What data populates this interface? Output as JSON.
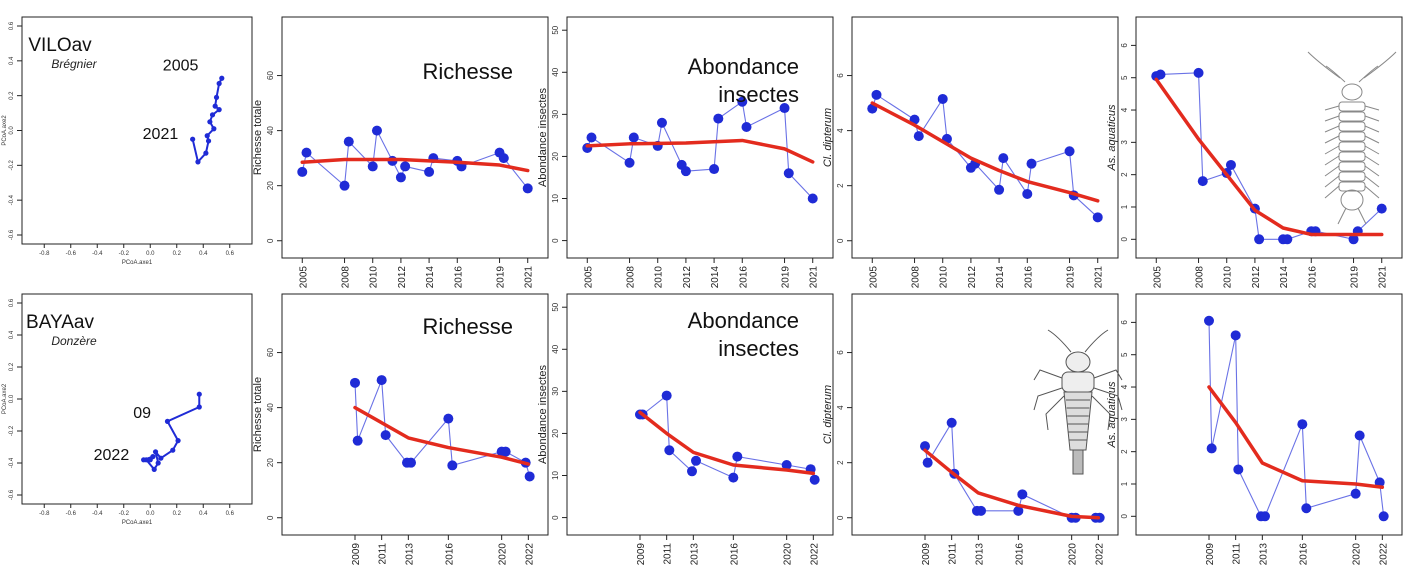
{
  "chart_data": [
    {
      "type": "scatter",
      "subtype": "ordination-trajectory",
      "site": "VILOav",
      "river": "Brégnier",
      "xlabel": "PCoA.axe1",
      "ylabel": "PCoA.axe2",
      "xlim": [
        -0.9,
        0.7
      ],
      "ylim": [
        -0.6,
        0.6
      ],
      "xticks": [
        "-0.8",
        "-0.6",
        "-0.4",
        "-0.2",
        "0.0",
        "0.2",
        "0.4",
        "0.6"
      ],
      "yticks": [
        "-0.6",
        "-0.4",
        "-0.2",
        "0.0",
        "0.2",
        "0.4",
        "0.6"
      ],
      "year_labels": [
        {
          "text": "2005",
          "x": 0.54,
          "y": 0.3
        },
        {
          "text": "2021",
          "x": 0.32,
          "y": -0.05
        }
      ],
      "points": [
        {
          "x": 0.54,
          "y": 0.3
        },
        {
          "x": 0.52,
          "y": 0.27
        },
        {
          "x": 0.5,
          "y": 0.19
        },
        {
          "x": 0.49,
          "y": 0.14
        },
        {
          "x": 0.52,
          "y": 0.12
        },
        {
          "x": 0.47,
          "y": 0.09
        },
        {
          "x": 0.45,
          "y": 0.05
        },
        {
          "x": 0.48,
          "y": 0.01
        },
        {
          "x": 0.43,
          "y": -0.03
        },
        {
          "x": 0.44,
          "y": -0.06
        },
        {
          "x": 0.42,
          "y": -0.13
        },
        {
          "x": 0.36,
          "y": -0.18
        },
        {
          "x": 0.32,
          "y": -0.05
        }
      ],
      "color": "#1f2bd6"
    },
    {
      "type": "line",
      "title": "Richesse",
      "ylabel": "Richesse totale",
      "ylim": [
        -3,
        78
      ],
      "yticks": [
        0,
        20,
        40,
        60
      ],
      "xlim": [
        2004.2,
        2021.8
      ],
      "xticks": [
        2005,
        2008,
        2010,
        2012,
        2014,
        2016,
        2019,
        2021
      ],
      "x": [
        2005,
        2005.3,
        2008,
        2008.3,
        2010,
        2010.3,
        2011.4,
        2012,
        2012.3,
        2014,
        2014.3,
        2016,
        2016.3,
        2019,
        2019.3,
        2021
      ],
      "values": [
        25,
        32,
        20,
        36,
        27,
        40,
        29,
        23,
        27,
        25,
        30,
        29,
        27,
        32,
        30,
        19
      ],
      "trend": {
        "x": [
          2005,
          2008,
          2012,
          2016,
          2019,
          2021
        ],
        "values": [
          28.5,
          29.5,
          29.5,
          28.5,
          27.5,
          25.5
        ]
      },
      "point_color": "#1f2bd6",
      "trend_color": "#e32b1e"
    },
    {
      "type": "line",
      "title": "Abondance insectes",
      "title_lines": [
        "Abondance",
        "insectes"
      ],
      "ylabel": "Abondance insectes",
      "ylim": [
        -2,
        51
      ],
      "yticks": [
        0,
        10,
        20,
        30,
        40,
        50
      ],
      "xlim": [
        2004.2,
        2021.8
      ],
      "xticks": [
        2005,
        2008,
        2010,
        2012,
        2014,
        2016,
        2019,
        2021
      ],
      "x": [
        2005,
        2005.3,
        2008,
        2008.3,
        2010,
        2010.3,
        2011.7,
        2012,
        2014,
        2014.3,
        2016,
        2016.3,
        2019,
        2019.3,
        2021
      ],
      "values": [
        22,
        24.5,
        18.5,
        24.5,
        22.5,
        28,
        18,
        16.5,
        17,
        29,
        33,
        27,
        31.5,
        16,
        10
      ],
      "trend": {
        "x": [
          2005,
          2008,
          2012,
          2016,
          2019,
          2021
        ],
        "values": [
          22.5,
          23,
          23.2,
          23.8,
          21.8,
          18.7
        ]
      },
      "point_color": "#1f2bd6",
      "trend_color": "#e32b1e"
    },
    {
      "type": "line",
      "ylabel": "Cl. dipterum",
      "ylim": [
        -0.3,
        7.8
      ],
      "yticks": [
        0,
        2,
        4,
        6
      ],
      "xlim": [
        2004.2,
        2021.8
      ],
      "xticks": [
        2005,
        2008,
        2010,
        2012,
        2014,
        2016,
        2019,
        2021
      ],
      "x": [
        2005,
        2005.3,
        2008,
        2008.3,
        2010,
        2010.3,
        2012,
        2012.3,
        2014,
        2014.3,
        2016,
        2016.3,
        2019,
        2019.3,
        2021
      ],
      "values": [
        4.8,
        5.3,
        4.4,
        3.8,
        5.15,
        3.7,
        2.65,
        2.8,
        1.85,
        3.0,
        1.7,
        2.8,
        3.25,
        1.65,
        0.85
      ],
      "trend": {
        "x": [
          2005,
          2008,
          2010,
          2012,
          2014,
          2016,
          2019,
          2021
        ],
        "values": [
          5.0,
          4.2,
          3.6,
          3.0,
          2.55,
          2.15,
          1.75,
          1.45
        ]
      },
      "point_color": "#1f2bd6",
      "trend_color": "#e32b1e"
    },
    {
      "type": "line",
      "ylabel": "As. aquaticus",
      "ylim": [
        -0.3,
        6.6
      ],
      "yticks": [
        0,
        1,
        2,
        3,
        4,
        5,
        6
      ],
      "xlim": [
        2004.2,
        2021.8
      ],
      "xticks": [
        2005,
        2008,
        2010,
        2012,
        2014,
        2016,
        2019,
        2021
      ],
      "x": [
        2005,
        2005.3,
        2008,
        2008.3,
        2010,
        2010.3,
        2012,
        2012.3,
        2014,
        2014.3,
        2016,
        2016.3,
        2019,
        2019.3,
        2021
      ],
      "values": [
        5.05,
        5.1,
        5.15,
        1.8,
        2.05,
        2.3,
        0.95,
        0.0,
        0.0,
        0.0,
        0.25,
        0.25,
        0.0,
        0.25,
        0.95
      ],
      "trend": {
        "x": [
          2005,
          2008,
          2010,
          2012,
          2014,
          2016,
          2019,
          2021
        ],
        "values": [
          4.95,
          3.1,
          2.0,
          0.9,
          0.35,
          0.15,
          0.15,
          0.15
        ]
      },
      "point_color": "#1f2bd6",
      "trend_color": "#e32b1e"
    },
    {
      "type": "scatter",
      "subtype": "ordination-trajectory",
      "site": "BAYAav",
      "river": "Donzère",
      "xlabel": "PCoA.axe1",
      "ylabel": "PCoA.axe2",
      "xlim": [
        -0.9,
        0.7
      ],
      "ylim": [
        -0.6,
        0.6
      ],
      "xticks": [
        "-0.8",
        "-0.6",
        "-0.4",
        "-0.2",
        "0.0",
        "0.2",
        "0.4",
        "0.6"
      ],
      "yticks": [
        "-0.6",
        "-0.4",
        "-0.2",
        "0.0",
        "0.2",
        "0.4",
        "0.6"
      ],
      "year_labels": [
        {
          "text": "09",
          "x": 0.37,
          "y": -0.05
        },
        {
          "text": "2022",
          "x": -0.05,
          "y": -0.38
        }
      ],
      "points": [
        {
          "x": 0.37,
          "y": 0.03
        },
        {
          "x": 0.37,
          "y": -0.05
        },
        {
          "x": 0.13,
          "y": -0.14
        },
        {
          "x": 0.21,
          "y": -0.26
        },
        {
          "x": 0.17,
          "y": -0.32
        },
        {
          "x": 0.08,
          "y": -0.37
        },
        {
          "x": 0.04,
          "y": -0.33
        },
        {
          "x": 0.06,
          "y": -0.4
        },
        {
          "x": 0.03,
          "y": -0.44
        },
        {
          "x": -0.03,
          "y": -0.38
        },
        {
          "x": 0.0,
          "y": -0.38
        },
        {
          "x": 0.02,
          "y": -0.36
        },
        {
          "x": -0.05,
          "y": -0.38
        }
      ],
      "color": "#1f2bd6"
    },
    {
      "type": "line",
      "title": "Richesse",
      "ylabel": "Richesse totale",
      "ylim": [
        -3,
        78
      ],
      "yticks": [
        0,
        20,
        40,
        60
      ],
      "xlim": [
        2004.2,
        2022.8
      ],
      "xticks": [
        2009,
        2011,
        2013,
        2016,
        2020,
        2022
      ],
      "x": [
        2009,
        2009.2,
        2011,
        2011.3,
        2012.9,
        2013.2,
        2016,
        2016.3,
        2020,
        2020.3,
        2021.8,
        2022.1
      ],
      "values": [
        49,
        28,
        50,
        30,
        20,
        20,
        36,
        19,
        24,
        24,
        20,
        15
      ],
      "trend": {
        "x": [
          2009,
          2011,
          2013,
          2016,
          2020,
          2022
        ],
        "values": [
          40,
          34.5,
          29,
          25.5,
          22,
          19.5
        ]
      },
      "point_color": "#1f2bd6",
      "trend_color": "#e32b1e"
    },
    {
      "type": "line",
      "title": "Abondance insectes",
      "title_lines": [
        "Abondance",
        "insectes"
      ],
      "ylabel": "Abondance insectes",
      "ylim": [
        -2,
        51
      ],
      "yticks": [
        0,
        10,
        20,
        30,
        40,
        50
      ],
      "xlim": [
        2004.2,
        2022.8
      ],
      "xticks": [
        2009,
        2011,
        2013,
        2016,
        2020,
        2022
      ],
      "x": [
        2009,
        2009.2,
        2011,
        2011.2,
        2012.9,
        2013.2,
        2016,
        2016.3,
        2020,
        2021.8,
        2022.1
      ],
      "values": [
        24.5,
        24.5,
        29,
        16,
        11,
        13.5,
        9.5,
        14.5,
        12.5,
        11.5,
        9
      ],
      "trend": {
        "x": [
          2009,
          2011,
          2013,
          2016,
          2020,
          2022
        ],
        "values": [
          25,
          20,
          15.5,
          12.5,
          11.3,
          10.5
        ]
      },
      "point_color": "#1f2bd6",
      "trend_color": "#e32b1e"
    },
    {
      "type": "line",
      "ylabel": "Cl. dipterum",
      "ylim": [
        -0.3,
        7.8
      ],
      "yticks": [
        0,
        2,
        4,
        6
      ],
      "xlim": [
        2004.2,
        2022.8
      ],
      "xticks": [
        2009,
        2011,
        2013,
        2016,
        2020,
        2022
      ],
      "x": [
        2009,
        2009.2,
        2011,
        2011.2,
        2012.9,
        2013.2,
        2016,
        2016.3,
        2020,
        2020.3,
        2021.8,
        2022.1
      ],
      "values": [
        2.6,
        2.0,
        3.45,
        1.6,
        0.25,
        0.25,
        0.25,
        0.85,
        0.0,
        0.0,
        0.0,
        0.0
      ],
      "trend": {
        "x": [
          2009,
          2011,
          2013,
          2016,
          2020,
          2022
        ],
        "values": [
          2.45,
          1.65,
          0.9,
          0.45,
          0.05,
          0.0
        ]
      },
      "point_color": "#1f2bd6",
      "trend_color": "#e32b1e"
    },
    {
      "type": "line",
      "ylabel": "As. aquaticus",
      "ylim": [
        -0.3,
        6.6
      ],
      "yticks": [
        0,
        1,
        2,
        3,
        4,
        5,
        6
      ],
      "xlim": [
        2004.2,
        2022.8
      ],
      "xticks": [
        2009,
        2011,
        2013,
        2016,
        2020,
        2022
      ],
      "x": [
        2009,
        2009.2,
        2011,
        2011.2,
        2012.9,
        2013.2,
        2016,
        2016.3,
        2020,
        2020.3,
        2021.8,
        2022.1
      ],
      "values": [
        6.05,
        2.1,
        5.6,
        1.45,
        0.0,
        0.0,
        2.85,
        0.25,
        0.7,
        2.5,
        1.05,
        0.0
      ],
      "trend": {
        "x": [
          2009,
          2011,
          2013,
          2016,
          2020,
          2022
        ],
        "values": [
          4.0,
          2.9,
          1.65,
          1.1,
          1.0,
          0.9
        ]
      },
      "point_color": "#1f2bd6",
      "trend_color": "#e32b1e"
    }
  ],
  "illustrations": [
    {
      "name": "asellus-aquaticus-drawing",
      "panel": 4
    },
    {
      "name": "cloeon-dipterum-larva-drawing",
      "panel": 8
    }
  ]
}
